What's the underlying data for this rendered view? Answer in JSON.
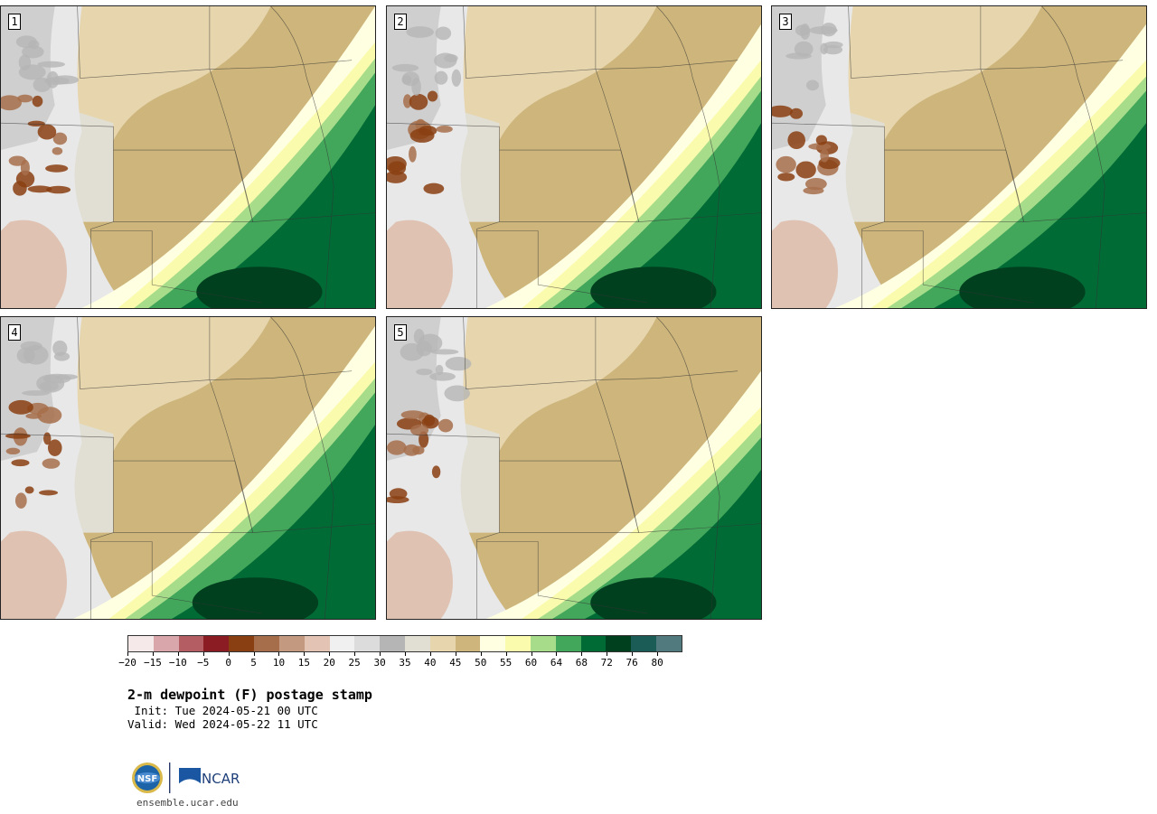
{
  "panels": [
    {
      "label": "1",
      "variant": 0
    },
    {
      "label": "2",
      "variant": 1
    },
    {
      "label": "3",
      "variant": 2
    },
    {
      "label": "4",
      "variant": 3
    },
    {
      "label": "5",
      "variant": 4
    }
  ],
  "colorbar": {
    "colors": [
      "#f5e9e9",
      "#d9a7ab",
      "#b45e63",
      "#8c1c24",
      "#8a3f12",
      "#a76e4b",
      "#c39a80",
      "#e2c3b4",
      "#f0f0f0",
      "#dcdcdc",
      "#b5b5b5",
      "#e1dfd3",
      "#e6d5ad",
      "#cdb57b",
      "#ffffe2",
      "#fbfbad",
      "#a7dc8b",
      "#42a75a",
      "#016b36",
      "#00401f",
      "#1b5c56",
      "#517a7f"
    ],
    "tick_labels": [
      "−20",
      "−15",
      "−10",
      "−5",
      "0",
      "5",
      "10",
      "15",
      "20",
      "25",
      "30",
      "35",
      "40",
      "45",
      "50",
      "55",
      "60",
      "64",
      "68",
      "72",
      "76",
      "80"
    ]
  },
  "title": "2-m dewpoint (F) postage stamp",
  "init": " Init: Tue 2024-05-21 00 UTC",
  "valid": "Valid: Wed 2024-05-22 11 UTC",
  "footer": {
    "site": "ensemble.ucar.edu",
    "logo_nsf": "NSF",
    "logo_ncar": "NCAR"
  }
}
